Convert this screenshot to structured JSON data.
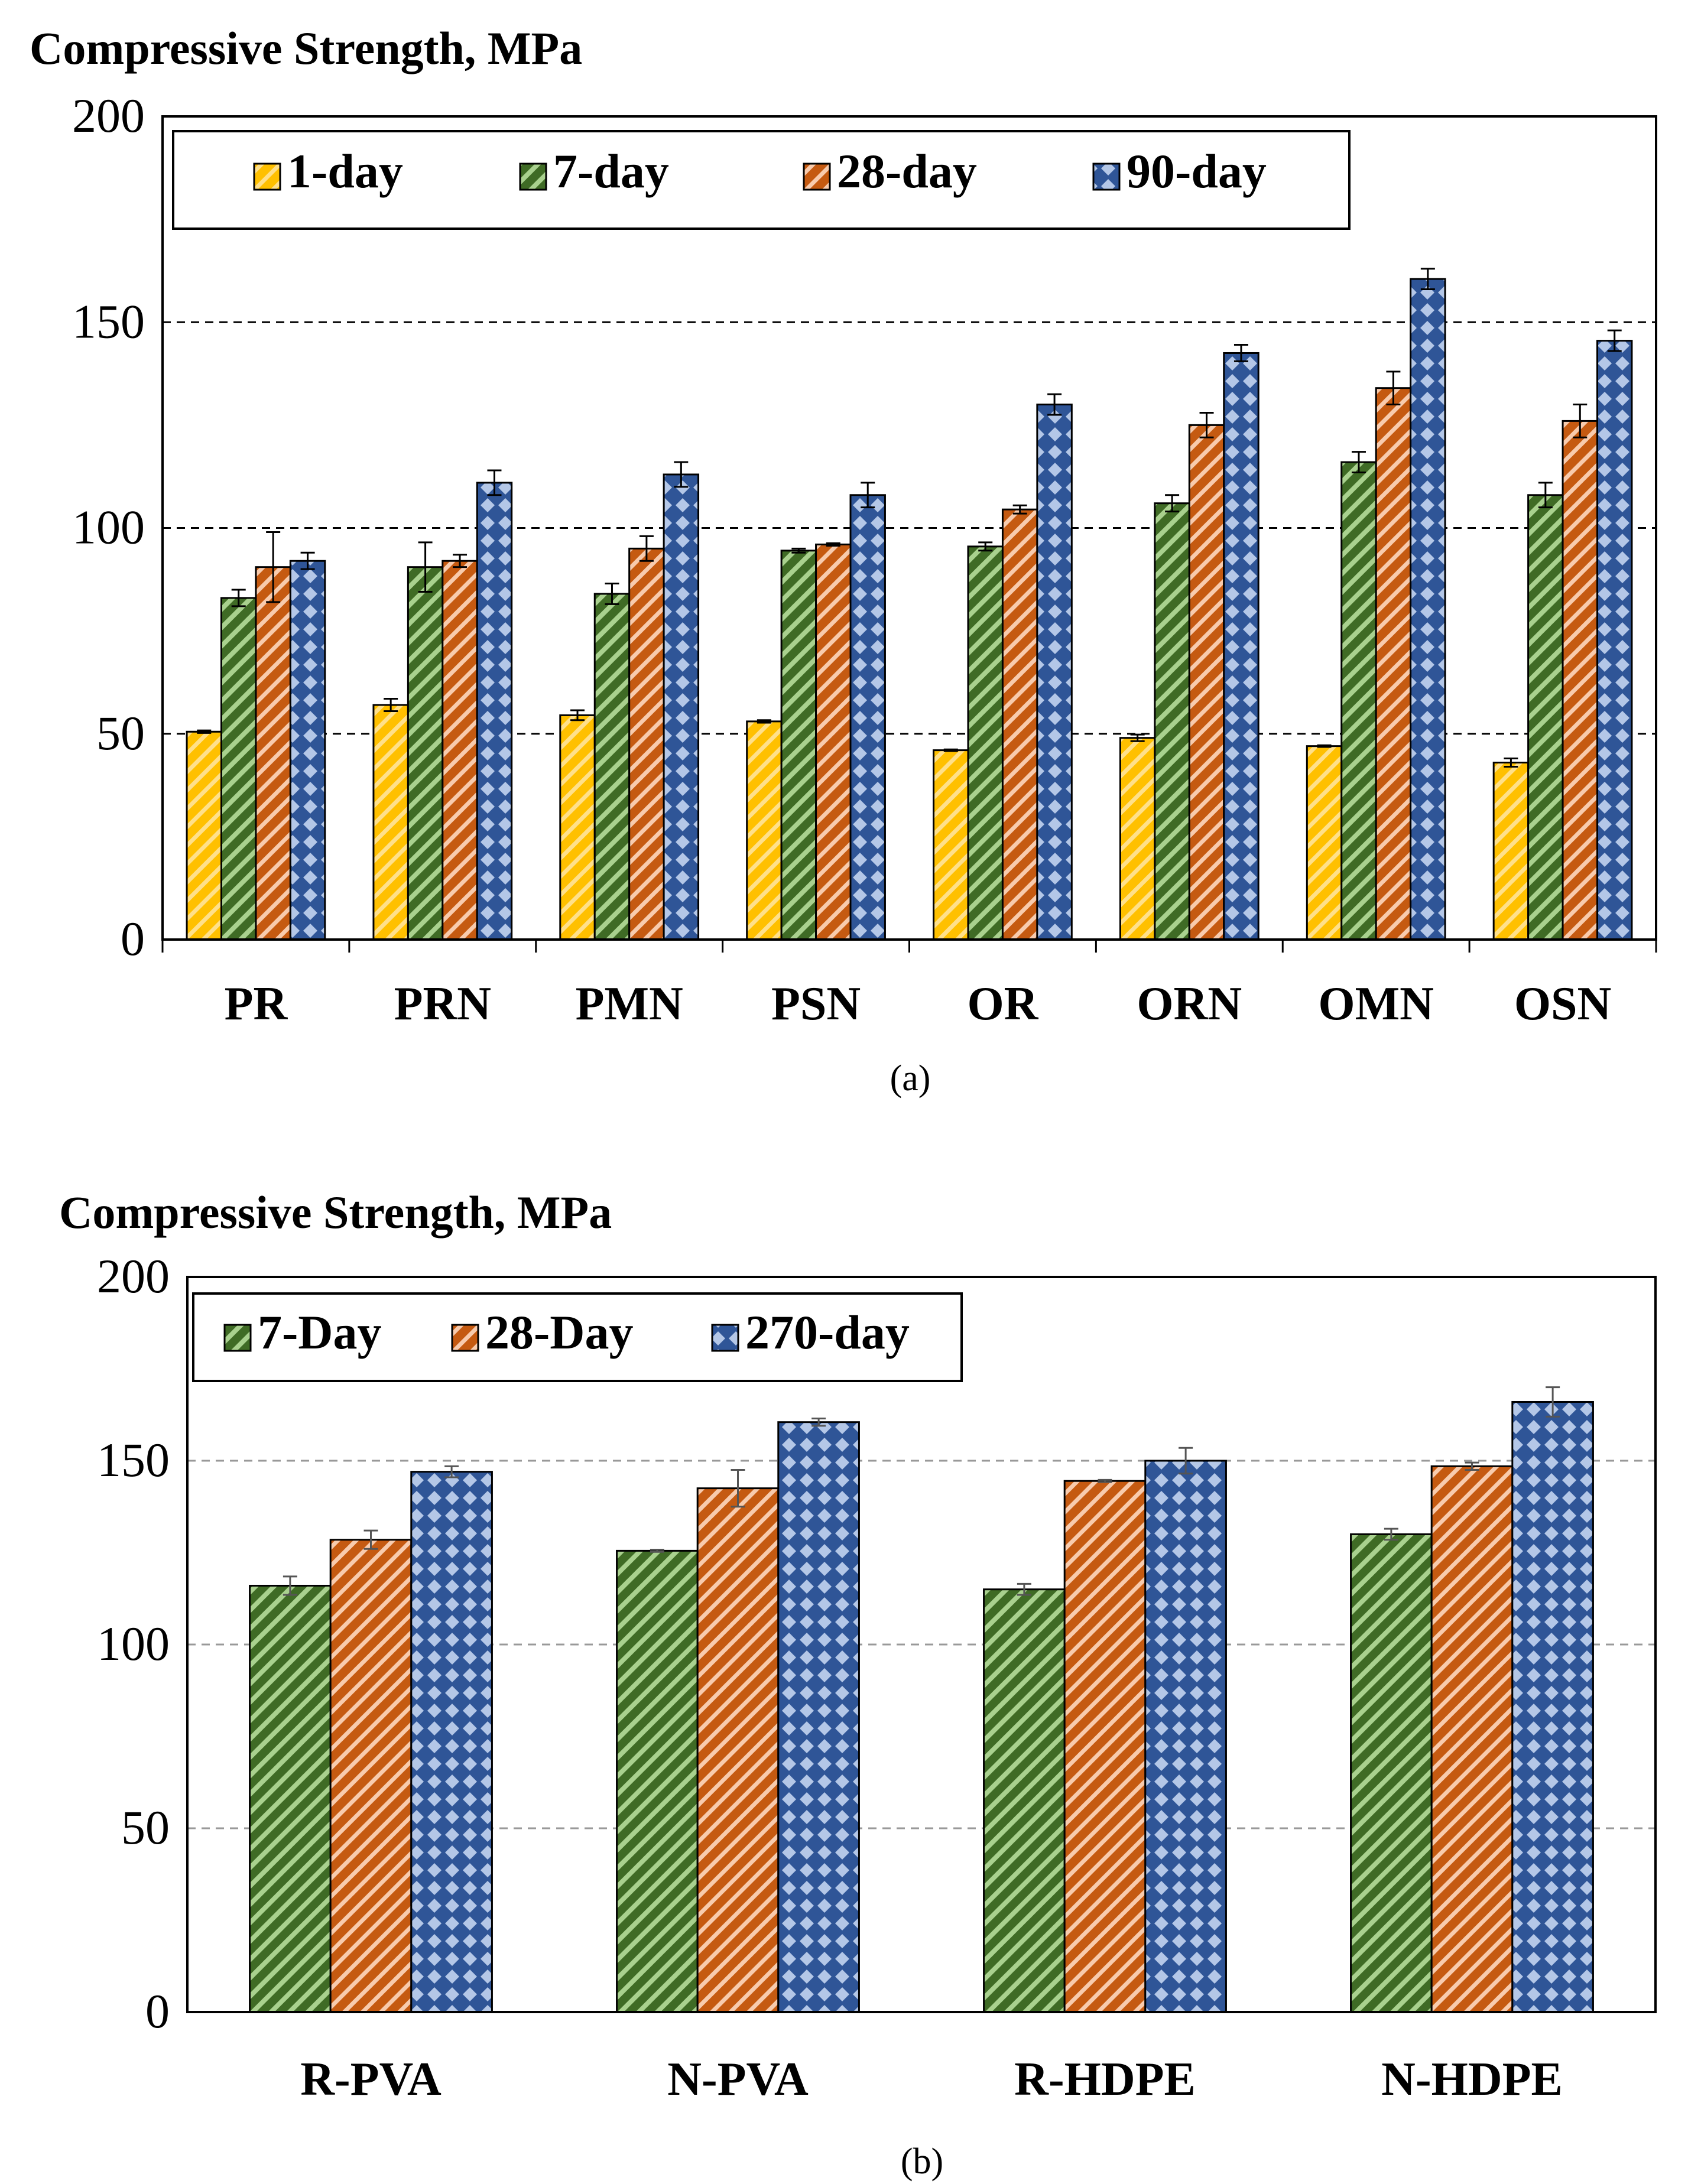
{
  "chart_data": [
    {
      "type": "bar",
      "title": "Compressive Strength, MPa",
      "caption": "(a)",
      "xlabel": "",
      "ylabel": "Compressive Strength, MPa",
      "ylim": [
        0,
        200
      ],
      "yticks": [
        0,
        50,
        100,
        150,
        200
      ],
      "grid": "dashed horizontal at 50, 100, 150",
      "legend_position": "top-left",
      "categories": [
        "PR",
        "PRN",
        "PMN",
        "PSN",
        "OR",
        "ORN",
        "OMN",
        "OSN"
      ],
      "series": [
        {
          "name": "1-day",
          "color": "#FFC000",
          "pattern": "diagonal-stripes",
          "values": [
            50.5,
            57,
            54.5,
            53,
            46,
            49,
            47,
            43
          ],
          "errors": [
            0.3,
            1.5,
            1.2,
            0.3,
            0.2,
            0.8,
            0.2,
            1.0
          ]
        },
        {
          "name": "7-day",
          "color": "#548235",
          "pattern": "diagonal-stripes",
          "values": [
            83,
            90.5,
            84,
            94.5,
            95.5,
            106,
            116,
            108
          ],
          "errors": [
            2,
            6,
            2.5,
            0.5,
            1,
            2,
            2.5,
            3
          ]
        },
        {
          "name": "28-day",
          "color": "#C55A11",
          "pattern": "diagonal-stripes",
          "values": [
            90.5,
            92,
            95,
            96,
            104.5,
            125,
            134,
            126
          ],
          "errors": [
            8.5,
            1.5,
            3,
            0.3,
            1,
            3,
            4,
            4
          ]
        },
        {
          "name": "90-day",
          "color": "#2F5597",
          "pattern": "diamonds",
          "values": [
            92,
            111,
            113,
            108,
            130,
            142.5,
            160.5,
            145.5
          ],
          "errors": [
            2,
            3,
            3,
            3,
            2.5,
            2,
            2.5,
            2.5
          ]
        }
      ]
    },
    {
      "type": "bar",
      "title": "Compressive Strength, MPa",
      "caption": "(b)",
      "xlabel": "",
      "ylabel": "Compressive Strength, MPa",
      "ylim": [
        0,
        200
      ],
      "yticks": [
        0,
        50,
        100,
        150,
        200
      ],
      "grid": "dashed horizontal at 50, 100, 150",
      "legend_position": "top-left",
      "categories": [
        "R-PVA",
        "N-PVA",
        "R-HDPE",
        "N-HDPE"
      ],
      "series": [
        {
          "name": "7-Day",
          "color": "#548235",
          "pattern": "diagonal-stripes",
          "values": [
            116,
            125.5,
            115,
            130
          ],
          "errors": [
            2.5,
            0.3,
            1.5,
            1.5
          ]
        },
        {
          "name": "28-Day",
          "color": "#C55A11",
          "pattern": "diagonal-stripes",
          "values": [
            128.5,
            142.5,
            144.5,
            148.5
          ],
          "errors": [
            2.5,
            5,
            0.3,
            1
          ]
        },
        {
          "name": "270-day",
          "color": "#2F5597",
          "pattern": "diamonds",
          "values": [
            147,
            160.5,
            150,
            166
          ],
          "errors": [
            1.5,
            1,
            3.5,
            4
          ]
        }
      ]
    }
  ]
}
